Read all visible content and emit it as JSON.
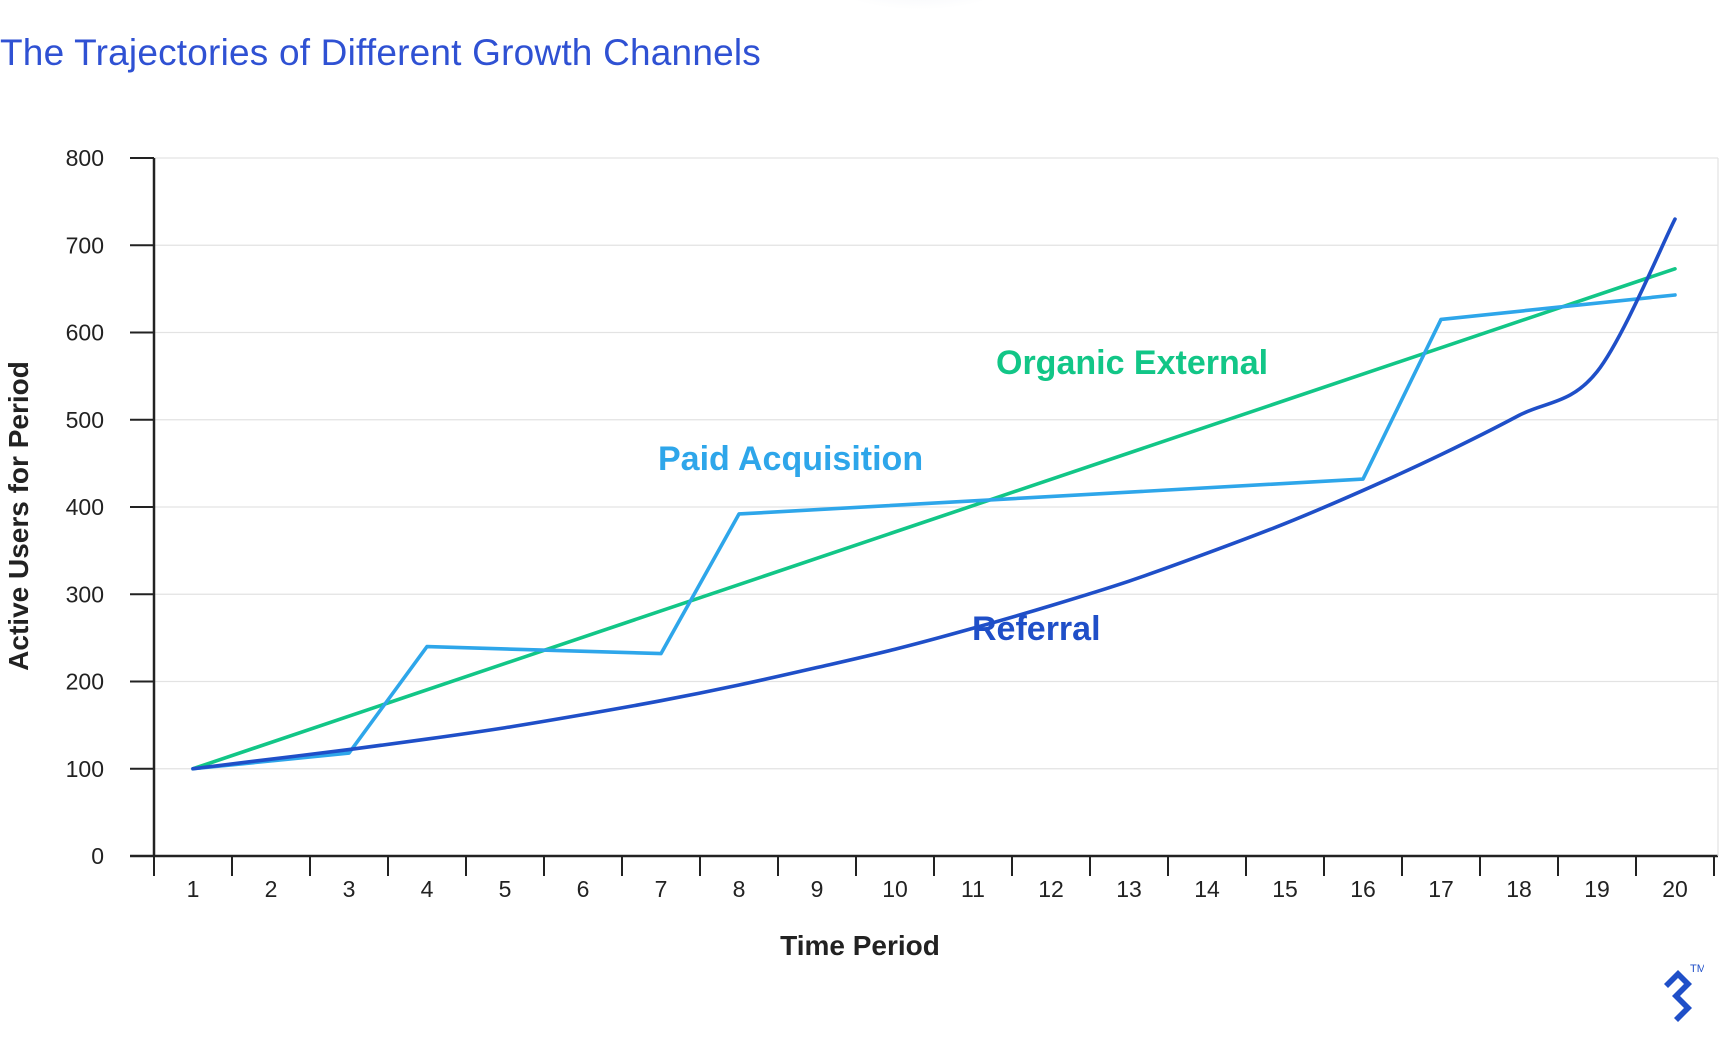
{
  "title": "The Trajectories of Different Growth Channels",
  "colors": {
    "title": "#2f51d3",
    "referral": "#1f4fc8",
    "paid": "#2ea6ea",
    "organic": "#12c687",
    "axis": "#222222",
    "grid": "#e3e3e3"
  },
  "chart_data": {
    "type": "line",
    "title": "The Trajectories of Different Growth Channels",
    "xlabel": "Time Period",
    "ylabel": "Active Users for Period",
    "x": [
      1,
      2,
      3,
      4,
      5,
      6,
      7,
      8,
      9,
      10,
      11,
      12,
      13,
      14,
      15,
      16,
      17,
      18,
      19,
      20
    ],
    "xticks": [
      "1",
      "2",
      "3",
      "4",
      "5",
      "6",
      "7",
      "8",
      "9",
      "10",
      "11",
      "12",
      "13",
      "14",
      "15",
      "16",
      "17",
      "18",
      "19",
      "20"
    ],
    "yticks": [
      "0",
      "100",
      "200",
      "300",
      "400",
      "500",
      "600",
      "700",
      "800"
    ],
    "ylim": [
      0,
      800
    ],
    "grid": true,
    "legend": "inline labels",
    "series": [
      {
        "name": "Organic External",
        "color": "#12c687",
        "x": [
          1,
          20
        ],
        "values": [
          100,
          673
        ]
      },
      {
        "name": "Paid Acquisition",
        "color": "#2ea6ea",
        "x": [
          1,
          3,
          4,
          7,
          8,
          16,
          17,
          20
        ],
        "values": [
          100,
          118,
          240,
          232,
          392,
          432,
          615,
          643
        ]
      },
      {
        "name": "Referral",
        "color": "#1f4fc8",
        "x": [
          1,
          2,
          3,
          4,
          5,
          6,
          7,
          8,
          9,
          10,
          11,
          12,
          13,
          14,
          15,
          16,
          17,
          18,
          19,
          20
        ],
        "values": [
          100,
          111,
          122,
          134,
          147,
          162,
          178,
          196,
          216,
          237,
          261,
          287,
          315,
          347,
          381,
          419,
          460,
          505,
          555,
          730
        ]
      }
    ],
    "annotations": [
      {
        "text": "Organic External",
        "series": "Organic External"
      },
      {
        "text": "Paid Acquisition",
        "series": "Paid Acquisition"
      },
      {
        "text": "Referral",
        "series": "Referral"
      }
    ]
  }
}
